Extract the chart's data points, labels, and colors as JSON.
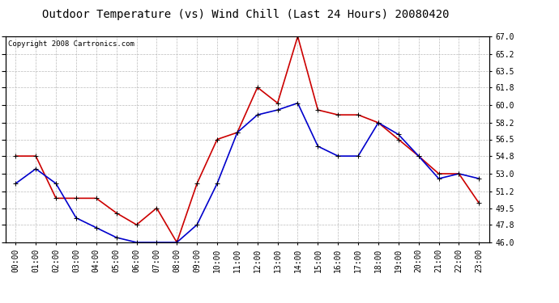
{
  "title": "Outdoor Temperature (vs) Wind Chill (Last 24 Hours) 20080420",
  "copyright": "Copyright 2008 Cartronics.com",
  "hours": [
    "00:00",
    "01:00",
    "02:00",
    "03:00",
    "04:00",
    "05:00",
    "06:00",
    "07:00",
    "08:00",
    "09:00",
    "10:00",
    "11:00",
    "12:00",
    "13:00",
    "14:00",
    "15:00",
    "16:00",
    "17:00",
    "18:00",
    "19:00",
    "20:00",
    "21:00",
    "22:00",
    "23:00"
  ],
  "temp": [
    54.8,
    54.8,
    50.5,
    50.5,
    50.5,
    49.0,
    47.8,
    49.5,
    46.0,
    52.0,
    56.5,
    57.2,
    61.8,
    60.2,
    67.0,
    59.5,
    59.0,
    59.0,
    58.2,
    56.5,
    54.8,
    53.0,
    53.0,
    50.0
  ],
  "windchill": [
    52.0,
    53.5,
    52.0,
    48.5,
    47.5,
    46.5,
    46.0,
    46.0,
    46.0,
    47.8,
    52.0,
    57.2,
    59.0,
    59.5,
    60.2,
    55.8,
    54.8,
    54.8,
    58.2,
    57.0,
    54.8,
    52.5,
    53.0,
    52.5
  ],
  "temp_color": "#cc0000",
  "windchill_color": "#0000cc",
  "bg_color": "#ffffff",
  "grid_color": "#bbbbbb",
  "ylim": [
    46.0,
    67.0
  ],
  "yticks": [
    46.0,
    47.8,
    49.5,
    51.2,
    53.0,
    54.8,
    56.5,
    58.2,
    60.0,
    61.8,
    63.5,
    65.2,
    67.0
  ],
  "marker": "+",
  "marker_size": 5,
  "line_width": 1.2,
  "title_fontsize": 10,
  "tick_fontsize": 7,
  "copyright_fontsize": 6.5
}
